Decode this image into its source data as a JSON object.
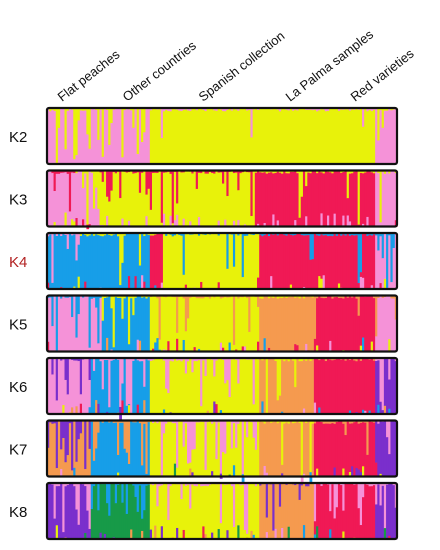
{
  "chart_data": {
    "type": "bar",
    "subtype": "stacked-structure-ancestry",
    "n_individuals": 160,
    "group_labels": [
      "Flat peaches",
      "Other countries",
      "Spanish collection",
      "La Palma samples",
      "Red varieties"
    ],
    "group_spans": [
      [
        0,
        24
      ],
      [
        24,
        47
      ],
      [
        47,
        97
      ],
      [
        97,
        133
      ],
      [
        133,
        160
      ]
    ],
    "highlight_panel": "K4",
    "colors": {
      "pink": "#f592d8",
      "yellow": "#e8f20a",
      "red": "#f01955",
      "blue": "#179ee8",
      "orange": "#f59a4f",
      "purple": "#7a2fcc",
      "green": "#179a48",
      "frame": "#111111",
      "highlight_label": "#b22222"
    },
    "panels": [
      {
        "label": "K2",
        "clusters": [
          "pink",
          "yellow"
        ],
        "segments": [
          {
            "start": 0,
            "end": 24,
            "dominant": "pink",
            "mix": "yellow",
            "noise": 0.35
          },
          {
            "start": 24,
            "end": 47,
            "dominant": "pink",
            "mix": "yellow",
            "noise": 0.45
          },
          {
            "start": 47,
            "end": 150,
            "dominant": "yellow",
            "mix": "pink",
            "noise": 0.02
          },
          {
            "start": 150,
            "end": 160,
            "dominant": "pink",
            "mix": "yellow",
            "noise": 0.2
          }
        ]
      },
      {
        "label": "K3",
        "clusters": [
          "pink",
          "yellow",
          "red"
        ],
        "segments": [
          {
            "start": 0,
            "end": 13,
            "dominant": "pink",
            "mix": "red",
            "noise": 0.15
          },
          {
            "start": 13,
            "end": 24,
            "dominant": "pink",
            "mix": "yellow",
            "noise": 0.35
          },
          {
            "start": 24,
            "end": 60,
            "dominant": "yellow",
            "mix": "red",
            "noise": 0.3
          },
          {
            "start": 60,
            "end": 95,
            "dominant": "yellow",
            "mix": "red",
            "noise": 0.25
          },
          {
            "start": 95,
            "end": 150,
            "dominant": "red",
            "mix": "yellow",
            "noise": 0.12
          },
          {
            "start": 150,
            "end": 160,
            "dominant": "pink",
            "mix": "yellow",
            "noise": 0.25
          }
        ]
      },
      {
        "label": "K4",
        "clusters": [
          "pink",
          "yellow",
          "red",
          "blue"
        ],
        "segments": [
          {
            "start": 0,
            "end": 15,
            "dominant": "blue",
            "mix": "pink",
            "noise": 0.3
          },
          {
            "start": 15,
            "end": 47,
            "dominant": "blue",
            "mix": "yellow",
            "noise": 0.08
          },
          {
            "start": 47,
            "end": 53,
            "dominant": "red",
            "mix": "yellow",
            "noise": 0.12
          },
          {
            "start": 53,
            "end": 97,
            "dominant": "yellow",
            "mix": "blue",
            "noise": 0.12
          },
          {
            "start": 97,
            "end": 150,
            "dominant": "red",
            "mix": "blue",
            "noise": 0.12
          },
          {
            "start": 150,
            "end": 160,
            "dominant": "pink",
            "mix": "blue",
            "noise": 0.3
          }
        ]
      },
      {
        "label": "K5",
        "clusters": [
          "pink",
          "yellow",
          "red",
          "blue",
          "orange"
        ],
        "segments": [
          {
            "start": 0,
            "end": 25,
            "dominant": "pink",
            "mix": "blue",
            "noise": 0.35
          },
          {
            "start": 25,
            "end": 47,
            "dominant": "blue",
            "mix": "yellow",
            "noise": 0.25
          },
          {
            "start": 47,
            "end": 97,
            "dominant": "yellow",
            "mix": "orange",
            "noise": 0.22
          },
          {
            "start": 97,
            "end": 122,
            "dominant": "orange",
            "mix": "yellow",
            "noise": 0.08
          },
          {
            "start": 122,
            "end": 150,
            "dominant": "red",
            "mix": "orange",
            "noise": 0.1
          },
          {
            "start": 150,
            "end": 160,
            "dominant": "pink",
            "mix": "orange",
            "noise": 0.3
          }
        ]
      },
      {
        "label": "K6",
        "clusters": [
          "pink",
          "yellow",
          "red",
          "blue",
          "orange",
          "purple"
        ],
        "segments": [
          {
            "start": 0,
            "end": 20,
            "dominant": "pink",
            "mix": "purple",
            "noise": 0.3
          },
          {
            "start": 20,
            "end": 47,
            "dominant": "blue",
            "mix": "pink",
            "noise": 0.3
          },
          {
            "start": 47,
            "end": 97,
            "dominant": "yellow",
            "mix": "pink",
            "noise": 0.28
          },
          {
            "start": 97,
            "end": 122,
            "dominant": "orange",
            "mix": "yellow",
            "noise": 0.08
          },
          {
            "start": 122,
            "end": 150,
            "dominant": "red",
            "mix": "orange",
            "noise": 0.1
          },
          {
            "start": 150,
            "end": 160,
            "dominant": "purple",
            "mix": "pink",
            "noise": 0.35
          }
        ]
      },
      {
        "label": "K7",
        "clusters": [
          "pink",
          "yellow",
          "red",
          "blue",
          "orange",
          "purple",
          "green"
        ],
        "segments": [
          {
            "start": 0,
            "end": 20,
            "dominant": "orange",
            "mix": "purple",
            "noise": 0.4
          },
          {
            "start": 20,
            "end": 47,
            "dominant": "blue",
            "mix": "orange",
            "noise": 0.35
          },
          {
            "start": 47,
            "end": 97,
            "dominant": "yellow",
            "mix": "pink",
            "noise": 0.28
          },
          {
            "start": 97,
            "end": 122,
            "dominant": "orange",
            "mix": "yellow",
            "noise": 0.08
          },
          {
            "start": 122,
            "end": 150,
            "dominant": "red",
            "mix": "orange",
            "noise": 0.1
          },
          {
            "start": 150,
            "end": 160,
            "dominant": "purple",
            "mix": "pink",
            "noise": 0.35
          }
        ]
      },
      {
        "label": "K8",
        "clusters": [
          "pink",
          "yellow",
          "red",
          "blue",
          "orange",
          "purple",
          "green"
        ],
        "segments": [
          {
            "start": 0,
            "end": 20,
            "dominant": "purple",
            "mix": "pink",
            "noise": 0.4
          },
          {
            "start": 20,
            "end": 47,
            "dominant": "green",
            "mix": "blue",
            "noise": 0.35
          },
          {
            "start": 47,
            "end": 97,
            "dominant": "yellow",
            "mix": "pink",
            "noise": 0.28
          },
          {
            "start": 97,
            "end": 122,
            "dominant": "orange",
            "mix": "purple",
            "noise": 0.2
          },
          {
            "start": 122,
            "end": 150,
            "dominant": "red",
            "mix": "pink",
            "noise": 0.2
          },
          {
            "start": 150,
            "end": 160,
            "dominant": "purple",
            "mix": "pink",
            "noise": 0.35
          }
        ]
      }
    ]
  }
}
